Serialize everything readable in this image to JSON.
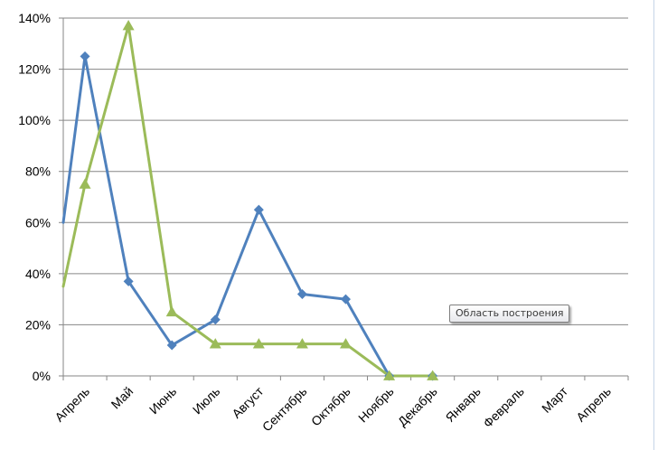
{
  "tooltip": {
    "text": "Область построения"
  },
  "colors": {
    "series_1": "#4f81bd",
    "series_2": "#9bbb59",
    "gridline": "#868686",
    "axis": "#868686"
  },
  "chart_data": {
    "type": "line",
    "title": "",
    "xlabel": "",
    "ylabel": "",
    "categories": [
      "Апрель",
      "Май",
      "Июнь",
      "Июль",
      "Август",
      "Сентябрь",
      "Октябрь",
      "Ноябрь",
      "Декабрь",
      "Январь",
      "Февраль",
      "Март",
      "Апрель"
    ],
    "y_ticks": [
      "0%",
      "20%",
      "40%",
      "60%",
      "80%",
      "100%",
      "120%",
      "140%"
    ],
    "ylim": [
      0,
      1.4
    ],
    "y_format": "percent",
    "grid": true,
    "legend": "none",
    "series": [
      {
        "marker": "diamond",
        "color": "#4f81bd",
        "leading_value": 0.6,
        "values": [
          1.25,
          0.37,
          0.12,
          0.22,
          0.65,
          0.32,
          0.3,
          0.0,
          0.0,
          null,
          null,
          null,
          null
        ]
      },
      {
        "marker": "triangle",
        "color": "#9bbb59",
        "leading_value": 0.35,
        "values": [
          0.75,
          1.37,
          0.25,
          0.125,
          0.125,
          0.125,
          0.125,
          0.0,
          0.0,
          null,
          null,
          null,
          null
        ]
      }
    ]
  }
}
